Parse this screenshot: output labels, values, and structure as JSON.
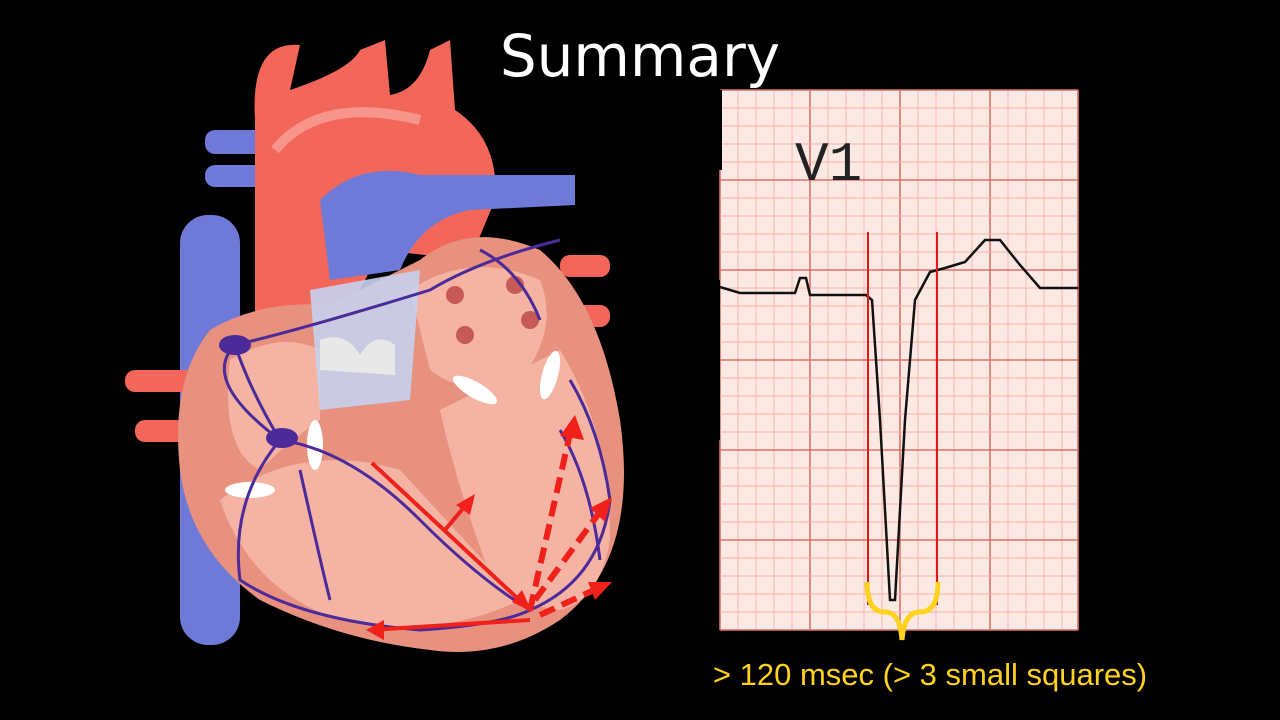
{
  "title": "Summary",
  "ecg": {
    "lead_label": "V1",
    "caption": "> 120 msec (> 3 small squares)"
  }
}
